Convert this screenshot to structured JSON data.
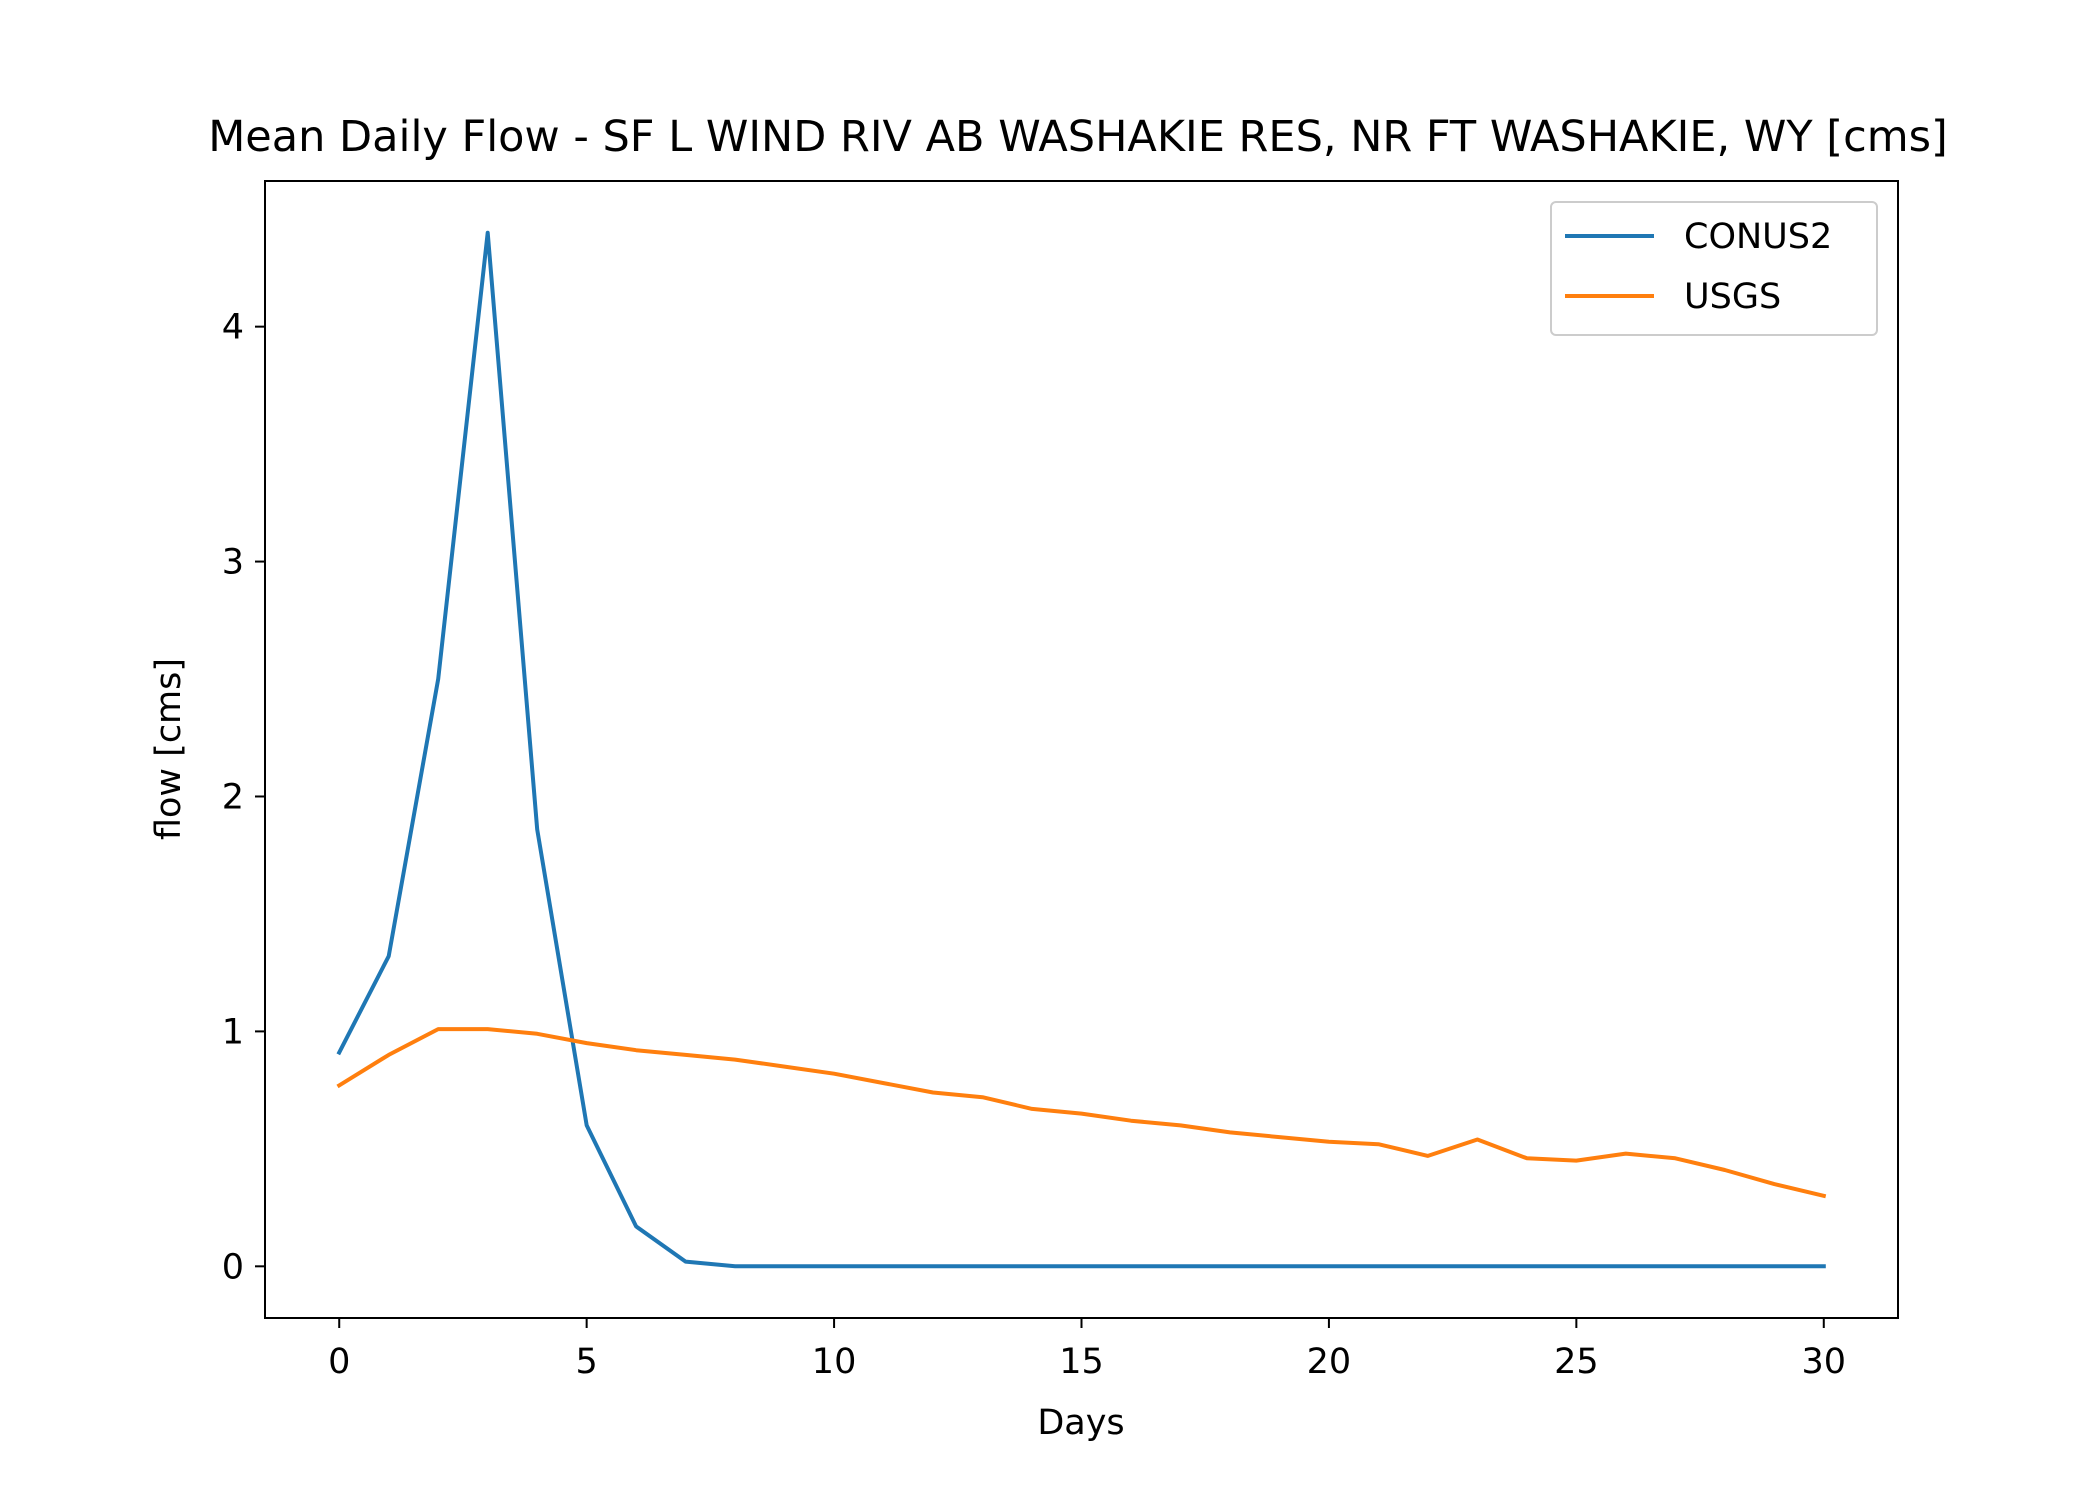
{
  "chart_data": {
    "type": "line",
    "title": "Mean Daily Flow - SF L WIND RIV AB WASHAKIE RES, NR FT WASHAKIE, WY [cms]",
    "xlabel": "Days",
    "ylabel": "flow [cms]",
    "xlim": [
      -1.5,
      31.5
    ],
    "ylim": [
      -0.22,
      4.62
    ],
    "xticks": [
      0,
      5,
      10,
      15,
      20,
      25,
      30
    ],
    "yticks": [
      0,
      1,
      2,
      3,
      4
    ],
    "grid": false,
    "legend_position": "top-right",
    "x": [
      0,
      1,
      2,
      3,
      4,
      5,
      6,
      7,
      8,
      9,
      10,
      11,
      12,
      13,
      14,
      15,
      16,
      17,
      18,
      19,
      20,
      21,
      22,
      23,
      24,
      25,
      26,
      27,
      28,
      29,
      30
    ],
    "series": [
      {
        "name": "CONUS2",
        "color": "#1f77b4",
        "values": [
          0.91,
          1.32,
          2.5,
          4.4,
          1.86,
          0.6,
          0.17,
          0.02,
          0,
          0,
          0,
          0,
          0,
          0,
          0,
          0,
          0,
          0,
          0,
          0,
          0,
          0,
          0,
          0,
          0,
          0,
          0,
          0,
          0,
          0,
          0
        ]
      },
      {
        "name": "USGS",
        "color": "#ff7f0e",
        "values": [
          0.77,
          0.9,
          1.01,
          1.01,
          0.99,
          0.95,
          0.92,
          0.9,
          0.88,
          0.85,
          0.82,
          0.78,
          0.74,
          0.72,
          0.67,
          0.65,
          0.62,
          0.6,
          0.57,
          0.55,
          0.53,
          0.52,
          0.47,
          0.54,
          0.46,
          0.45,
          0.48,
          0.46,
          0.41,
          0.35,
          0.3
        ]
      }
    ]
  }
}
